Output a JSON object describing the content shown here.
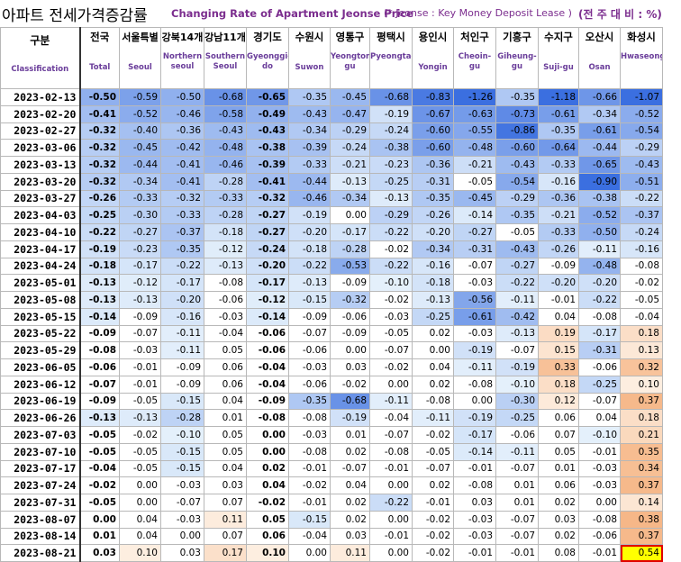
{
  "header": {
    "title_ko": "아파트 전세가격증감률",
    "title_en": "Changing Rate of Apartment Jeonse Price",
    "note": "(* Jeonse : Key Money Deposit Lease )",
    "unit": "(전 주 대 비 : %)"
  },
  "corner": {
    "ko": "구분",
    "en": "Classification"
  },
  "colors": {
    "neg_strong": "#3b6fe0",
    "neg_light": "#e4f0fb",
    "pos_strong": "#f3a062",
    "pos_light": "#fdeee0",
    "highlight_border": "#e00000",
    "highlight_fill": "#ffff00"
  },
  "chart_data": {
    "type": "table",
    "columns": [
      {
        "ko": "전국",
        "en": "Total"
      },
      {
        "ko": "서울특별",
        "en": "Seoul"
      },
      {
        "ko": "강북14개",
        "en": "Northern seoul"
      },
      {
        "ko": "강남11개",
        "en": "Southern Seoul"
      },
      {
        "ko": "경기도",
        "en": "Gyeonggi-do"
      },
      {
        "ko": "수원시",
        "en": "Suwon"
      },
      {
        "ko": "영통구",
        "en": "Yeongtong-gu"
      },
      {
        "ko": "평택시",
        "en": "Pyeongtaek"
      },
      {
        "ko": "용인시",
        "en": "Yongin"
      },
      {
        "ko": "처인구",
        "en": "Cheoin-gu"
      },
      {
        "ko": "기흥구",
        "en": "Giheung-gu"
      },
      {
        "ko": "수지구",
        "en": "Suji-gu"
      },
      {
        "ko": "오산시",
        "en": "Osan"
      },
      {
        "ko": "화성시",
        "en": "Hwaseong"
      }
    ],
    "rows": [
      {
        "date": "2023-02-13",
        "values": [
          -0.5,
          -0.59,
          -0.5,
          -0.68,
          -0.65,
          -0.35,
          -0.45,
          -0.68,
          -0.83,
          -1.26,
          -0.35,
          -1.18,
          -0.66,
          -1.07
        ]
      },
      {
        "date": "2023-02-20",
        "values": [
          -0.41,
          -0.52,
          -0.46,
          -0.58,
          -0.49,
          -0.43,
          -0.47,
          -0.19,
          -0.67,
          -0.63,
          -0.73,
          -0.61,
          -0.34,
          -0.52
        ]
      },
      {
        "date": "2023-02-27",
        "values": [
          -0.32,
          -0.4,
          -0.36,
          -0.43,
          -0.43,
          -0.34,
          -0.29,
          -0.24,
          -0.6,
          -0.55,
          -0.86,
          -0.35,
          -0.61,
          -0.54
        ]
      },
      {
        "date": "2023-03-06",
        "values": [
          -0.32,
          -0.45,
          -0.42,
          -0.48,
          -0.38,
          -0.39,
          -0.24,
          -0.38,
          -0.6,
          -0.48,
          -0.6,
          -0.64,
          -0.44,
          -0.29
        ]
      },
      {
        "date": "2023-03-13",
        "values": [
          -0.32,
          -0.44,
          -0.41,
          -0.46,
          -0.39,
          -0.33,
          -0.21,
          -0.23,
          -0.36,
          -0.21,
          -0.43,
          -0.33,
          -0.65,
          -0.43
        ]
      },
      {
        "date": "2023-03-20",
        "values": [
          -0.32,
          -0.34,
          -0.41,
          -0.28,
          -0.41,
          -0.44,
          -0.13,
          -0.25,
          -0.31,
          -0.05,
          -0.54,
          -0.16,
          -0.9,
          -0.51
        ]
      },
      {
        "date": "2023-03-27",
        "values": [
          -0.26,
          -0.33,
          -0.32,
          -0.33,
          -0.32,
          -0.46,
          -0.34,
          -0.13,
          -0.35,
          -0.45,
          -0.29,
          -0.36,
          -0.38,
          -0.22
        ]
      },
      {
        "date": "2023-04-03",
        "values": [
          -0.25,
          -0.3,
          -0.33,
          -0.28,
          -0.27,
          -0.19,
          0.0,
          -0.29,
          -0.26,
          -0.14,
          -0.35,
          -0.21,
          -0.52,
          -0.37
        ]
      },
      {
        "date": "2023-04-10",
        "values": [
          -0.22,
          -0.27,
          -0.37,
          -0.18,
          -0.27,
          -0.2,
          -0.17,
          -0.22,
          -0.2,
          -0.27,
          -0.05,
          -0.33,
          -0.5,
          -0.24
        ]
      },
      {
        "date": "2023-04-17",
        "values": [
          -0.19,
          -0.23,
          -0.35,
          -0.12,
          -0.24,
          -0.18,
          -0.28,
          -0.02,
          -0.34,
          -0.31,
          -0.43,
          -0.26,
          -0.11,
          -0.16
        ]
      },
      {
        "date": "2023-04-24",
        "values": [
          -0.18,
          -0.17,
          -0.22,
          -0.13,
          -0.2,
          -0.22,
          -0.53,
          -0.22,
          -0.16,
          -0.07,
          -0.27,
          -0.09,
          -0.48,
          -0.08
        ]
      },
      {
        "date": "2023-05-01",
        "values": [
          -0.13,
          -0.12,
          -0.17,
          -0.08,
          -0.17,
          -0.13,
          -0.09,
          -0.1,
          -0.18,
          -0.03,
          -0.22,
          -0.2,
          -0.2,
          -0.02
        ]
      },
      {
        "date": "2023-05-08",
        "values": [
          -0.13,
          -0.13,
          -0.2,
          -0.06,
          -0.12,
          -0.15,
          -0.32,
          -0.02,
          -0.13,
          -0.56,
          -0.11,
          -0.01,
          -0.22,
          -0.05
        ]
      },
      {
        "date": "2023-05-15",
        "values": [
          -0.14,
          -0.09,
          -0.16,
          -0.03,
          -0.14,
          -0.09,
          -0.06,
          -0.03,
          -0.25,
          -0.61,
          -0.42,
          0.04,
          -0.08,
          -0.04
        ]
      },
      {
        "date": "2023-05-22",
        "values": [
          -0.09,
          -0.07,
          -0.11,
          -0.04,
          -0.06,
          -0.07,
          -0.09,
          -0.05,
          0.02,
          -0.03,
          -0.13,
          0.19,
          -0.17,
          0.18
        ]
      },
      {
        "date": "2023-05-29",
        "values": [
          -0.08,
          -0.03,
          -0.11,
          0.05,
          -0.06,
          -0.06,
          0.0,
          -0.07,
          0.0,
          -0.19,
          -0.07,
          0.15,
          -0.31,
          0.13
        ]
      },
      {
        "date": "2023-06-05",
        "values": [
          -0.06,
          -0.01,
          -0.09,
          0.06,
          -0.04,
          -0.03,
          0.03,
          -0.02,
          0.04,
          -0.11,
          -0.19,
          0.33,
          -0.06,
          0.32
        ]
      },
      {
        "date": "2023-06-12",
        "values": [
          -0.07,
          -0.01,
          -0.09,
          0.06,
          -0.04,
          -0.06,
          -0.02,
          0.0,
          0.02,
          -0.08,
          -0.1,
          0.18,
          -0.25,
          0.1
        ]
      },
      {
        "date": "2023-06-19",
        "values": [
          -0.09,
          -0.05,
          -0.15,
          0.04,
          -0.09,
          -0.35,
          -0.68,
          -0.11,
          -0.08,
          0.0,
          -0.3,
          0.12,
          -0.07,
          0.37
        ]
      },
      {
        "date": "2023-06-26",
        "values": [
          -0.13,
          -0.13,
          -0.28,
          0.01,
          -0.08,
          -0.08,
          -0.19,
          -0.04,
          -0.11,
          -0.19,
          -0.25,
          0.06,
          0.04,
          0.18
        ]
      },
      {
        "date": "2023-07-03",
        "values": [
          -0.05,
          -0.02,
          -0.1,
          0.05,
          0.0,
          -0.03,
          0.01,
          -0.07,
          -0.02,
          -0.17,
          -0.06,
          0.07,
          -0.1,
          0.21
        ]
      },
      {
        "date": "2023-07-10",
        "values": [
          -0.05,
          -0.05,
          -0.15,
          0.05,
          0.0,
          -0.08,
          0.02,
          -0.08,
          -0.05,
          -0.14,
          -0.11,
          0.05,
          -0.01,
          0.35
        ]
      },
      {
        "date": "2023-07-17",
        "values": [
          -0.04,
          -0.05,
          -0.15,
          0.04,
          0.02,
          -0.01,
          -0.07,
          -0.01,
          -0.07,
          -0.01,
          -0.07,
          0.01,
          -0.03,
          0.34
        ]
      },
      {
        "date": "2023-07-24",
        "values": [
          -0.02,
          0.0,
          -0.03,
          0.03,
          0.04,
          -0.02,
          0.04,
          0.0,
          0.02,
          -0.08,
          0.01,
          0.06,
          -0.03,
          0.37
        ]
      },
      {
        "date": "2023-07-31",
        "values": [
          -0.05,
          0.0,
          -0.07,
          0.07,
          -0.02,
          -0.01,
          0.02,
          -0.22,
          -0.01,
          0.03,
          0.01,
          0.02,
          0.0,
          0.14
        ]
      },
      {
        "date": "2023-08-07",
        "values": [
          0.0,
          0.04,
          -0.03,
          0.11,
          0.05,
          -0.15,
          0.02,
          0.0,
          -0.02,
          -0.03,
          -0.07,
          0.03,
          -0.08,
          0.38
        ]
      },
      {
        "date": "2023-08-14",
        "values": [
          0.01,
          0.04,
          0.0,
          0.07,
          0.06,
          -0.04,
          0.03,
          -0.01,
          -0.02,
          -0.03,
          -0.07,
          0.02,
          -0.06,
          0.37
        ]
      },
      {
        "date": "2023-08-21",
        "values": [
          0.03,
          0.1,
          0.03,
          0.17,
          0.1,
          0.0,
          0.11,
          0.0,
          -0.02,
          -0.01,
          -0.01,
          0.08,
          -0.01,
          0.54
        ]
      }
    ],
    "bold_columns": [
      0,
      4
    ],
    "highlight_cell": {
      "row": 27,
      "col": 13
    }
  }
}
